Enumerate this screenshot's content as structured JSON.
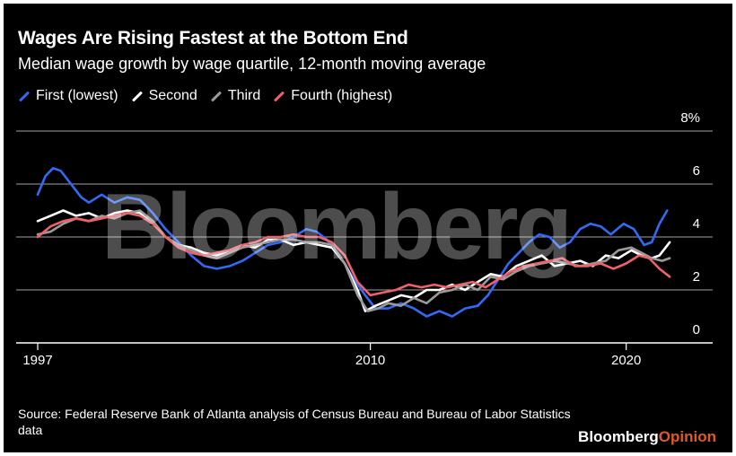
{
  "watermark": "Bloomberg",
  "brand": {
    "part1": "Bloomberg",
    "part2": "Opinion"
  },
  "chart_data": {
    "type": "line",
    "title": "Wages Are Rising Fastest at the Bottom End",
    "subtitle": "Median wage growth by wage quartile, 12-month moving average",
    "source": "Source: Federal Reserve Bank of Atlanta analysis of Census Bureau and Bureau of Labor Statistics data",
    "xlabel": "",
    "ylabel": "",
    "xlim": [
      1997,
      2021.8
    ],
    "ylim": [
      0,
      8
    ],
    "grid": true,
    "legend_position": "top",
    "x_ticks": [
      {
        "value": 1997,
        "label": "1997"
      },
      {
        "value": 2010,
        "label": "2010"
      },
      {
        "value": 2020,
        "label": "2020"
      }
    ],
    "y_ticks": [
      {
        "value": 0,
        "label": "0"
      },
      {
        "value": 2,
        "label": "2"
      },
      {
        "value": 4,
        "label": "4"
      },
      {
        "value": 6,
        "label": "6"
      },
      {
        "value": 8,
        "label": "8%"
      }
    ],
    "series": [
      {
        "name": "First (lowest)",
        "color": "#2f6bf5",
        "points": [
          [
            1997.0,
            5.6
          ],
          [
            1997.3,
            6.3
          ],
          [
            1997.6,
            6.6
          ],
          [
            1997.9,
            6.5
          ],
          [
            1998.3,
            6.0
          ],
          [
            1998.7,
            5.5
          ],
          [
            1999.0,
            5.3
          ],
          [
            1999.5,
            5.6
          ],
          [
            2000.0,
            5.3
          ],
          [
            2000.5,
            5.5
          ],
          [
            2001.0,
            5.4
          ],
          [
            2001.5,
            4.9
          ],
          [
            2002.0,
            4.3
          ],
          [
            2002.5,
            3.8
          ],
          [
            2003.0,
            3.3
          ],
          [
            2003.5,
            2.9
          ],
          [
            2004.0,
            2.8
          ],
          [
            2004.5,
            2.9
          ],
          [
            2005.0,
            3.1
          ],
          [
            2005.5,
            3.4
          ],
          [
            2006.0,
            3.7
          ],
          [
            2006.5,
            3.8
          ],
          [
            2007.0,
            4.0
          ],
          [
            2007.5,
            4.3
          ],
          [
            2007.9,
            4.2
          ],
          [
            2008.3,
            3.9
          ],
          [
            2008.8,
            3.3
          ],
          [
            2009.3,
            2.5
          ],
          [
            2009.8,
            1.8
          ],
          [
            2010.2,
            1.3
          ],
          [
            2010.7,
            1.3
          ],
          [
            2011.2,
            1.5
          ],
          [
            2011.7,
            1.3
          ],
          [
            2012.2,
            1.0
          ],
          [
            2012.7,
            1.2
          ],
          [
            2013.2,
            1.0
          ],
          [
            2013.7,
            1.3
          ],
          [
            2014.2,
            1.4
          ],
          [
            2014.6,
            1.8
          ],
          [
            2015.0,
            2.4
          ],
          [
            2015.4,
            3.0
          ],
          [
            2015.8,
            3.4
          ],
          [
            2016.2,
            3.8
          ],
          [
            2016.6,
            4.1
          ],
          [
            2017.0,
            4.0
          ],
          [
            2017.4,
            3.6
          ],
          [
            2017.8,
            3.8
          ],
          [
            2018.2,
            4.3
          ],
          [
            2018.6,
            4.5
          ],
          [
            2019.0,
            4.4
          ],
          [
            2019.4,
            4.1
          ],
          [
            2019.9,
            4.5
          ],
          [
            2020.3,
            4.3
          ],
          [
            2020.7,
            3.7
          ],
          [
            2021.0,
            3.8
          ],
          [
            2021.3,
            4.5
          ],
          [
            2021.6,
            5.0
          ]
        ]
      },
      {
        "name": "Second",
        "color": "#ffffff",
        "points": [
          [
            1997.0,
            4.6
          ],
          [
            1997.5,
            4.8
          ],
          [
            1998.0,
            5.0
          ],
          [
            1998.5,
            4.8
          ],
          [
            1999.0,
            4.9
          ],
          [
            1999.5,
            4.7
          ],
          [
            2000.0,
            4.9
          ],
          [
            2000.5,
            5.0
          ],
          [
            2001.0,
            4.9
          ],
          [
            2001.5,
            4.6
          ],
          [
            2002.0,
            4.0
          ],
          [
            2002.5,
            3.7
          ],
          [
            2003.0,
            3.6
          ],
          [
            2003.5,
            3.4
          ],
          [
            2004.0,
            3.3
          ],
          [
            2004.5,
            3.5
          ],
          [
            2005.0,
            3.7
          ],
          [
            2005.5,
            3.6
          ],
          [
            2006.0,
            3.9
          ],
          [
            2006.5,
            3.9
          ],
          [
            2007.0,
            3.7
          ],
          [
            2007.5,
            3.8
          ],
          [
            2008.0,
            3.7
          ],
          [
            2008.5,
            3.6
          ],
          [
            2009.0,
            3.0
          ],
          [
            2009.5,
            2.0
          ],
          [
            2009.8,
            1.2
          ],
          [
            2010.2,
            1.4
          ],
          [
            2010.7,
            1.6
          ],
          [
            2011.2,
            1.8
          ],
          [
            2011.7,
            1.7
          ],
          [
            2012.2,
            2.0
          ],
          [
            2012.7,
            2.0
          ],
          [
            2013.2,
            2.2
          ],
          [
            2013.7,
            2.0
          ],
          [
            2014.2,
            2.3
          ],
          [
            2014.7,
            2.6
          ],
          [
            2015.2,
            2.5
          ],
          [
            2015.7,
            2.9
          ],
          [
            2016.2,
            3.1
          ],
          [
            2016.7,
            3.3
          ],
          [
            2017.2,
            2.9
          ],
          [
            2017.7,
            3.0
          ],
          [
            2018.2,
            3.1
          ],
          [
            2018.7,
            2.9
          ],
          [
            2019.2,
            3.3
          ],
          [
            2019.7,
            3.2
          ],
          [
            2020.2,
            3.5
          ],
          [
            2020.6,
            3.3
          ],
          [
            2021.0,
            3.2
          ],
          [
            2021.3,
            3.3
          ],
          [
            2021.7,
            3.8
          ]
        ]
      },
      {
        "name": "Third",
        "color": "#9a9a9a",
        "points": [
          [
            1997.0,
            4.1
          ],
          [
            1997.5,
            4.2
          ],
          [
            1998.0,
            4.5
          ],
          [
            1998.5,
            4.7
          ],
          [
            1999.0,
            4.6
          ],
          [
            1999.5,
            4.8
          ],
          [
            2000.0,
            4.7
          ],
          [
            2000.5,
            4.9
          ],
          [
            2001.0,
            5.0
          ],
          [
            2001.5,
            4.6
          ],
          [
            2002.0,
            4.0
          ],
          [
            2002.5,
            3.7
          ],
          [
            2003.0,
            3.5
          ],
          [
            2003.5,
            3.3
          ],
          [
            2004.0,
            3.2
          ],
          [
            2004.5,
            3.4
          ],
          [
            2005.0,
            3.6
          ],
          [
            2005.5,
            3.7
          ],
          [
            2006.0,
            3.8
          ],
          [
            2006.5,
            3.9
          ],
          [
            2007.0,
            3.9
          ],
          [
            2007.5,
            3.8
          ],
          [
            2008.0,
            3.8
          ],
          [
            2008.5,
            3.7
          ],
          [
            2009.0,
            3.0
          ],
          [
            2009.5,
            1.8
          ],
          [
            2009.9,
            1.2
          ],
          [
            2010.3,
            1.3
          ],
          [
            2010.7,
            1.5
          ],
          [
            2011.2,
            1.4
          ],
          [
            2011.7,
            1.7
          ],
          [
            2012.2,
            1.5
          ],
          [
            2012.7,
            1.9
          ],
          [
            2013.2,
            2.0
          ],
          [
            2013.7,
            2.2
          ],
          [
            2014.2,
            2.0
          ],
          [
            2014.7,
            2.5
          ],
          [
            2015.2,
            2.4
          ],
          [
            2015.7,
            2.7
          ],
          [
            2016.2,
            2.9
          ],
          [
            2016.7,
            3.0
          ],
          [
            2017.2,
            3.1
          ],
          [
            2017.7,
            3.0
          ],
          [
            2018.2,
            2.9
          ],
          [
            2018.7,
            3.0
          ],
          [
            2019.2,
            3.1
          ],
          [
            2019.7,
            3.5
          ],
          [
            2020.2,
            3.6
          ],
          [
            2020.6,
            3.4
          ],
          [
            2021.0,
            3.2
          ],
          [
            2021.4,
            3.1
          ],
          [
            2021.7,
            3.2
          ]
        ]
      },
      {
        "name": "Fourth (highest)",
        "color": "#f0616a",
        "points": [
          [
            1997.0,
            4.0
          ],
          [
            1997.5,
            4.4
          ],
          [
            1998.0,
            4.6
          ],
          [
            1998.5,
            4.7
          ],
          [
            1999.0,
            4.6
          ],
          [
            1999.5,
            4.7
          ],
          [
            2000.0,
            4.8
          ],
          [
            2000.5,
            4.9
          ],
          [
            2001.0,
            4.8
          ],
          [
            2001.5,
            4.5
          ],
          [
            2002.0,
            4.0
          ],
          [
            2002.5,
            3.6
          ],
          [
            2003.0,
            3.4
          ],
          [
            2003.5,
            3.3
          ],
          [
            2004.0,
            3.4
          ],
          [
            2004.5,
            3.5
          ],
          [
            2005.0,
            3.7
          ],
          [
            2005.5,
            3.8
          ],
          [
            2006.0,
            4.0
          ],
          [
            2006.5,
            4.0
          ],
          [
            2007.0,
            4.1
          ],
          [
            2007.5,
            4.0
          ],
          [
            2008.0,
            4.0
          ],
          [
            2008.5,
            3.8
          ],
          [
            2009.0,
            3.3
          ],
          [
            2009.5,
            2.3
          ],
          [
            2010.0,
            1.8
          ],
          [
            2010.5,
            1.9
          ],
          [
            2011.0,
            2.0
          ],
          [
            2011.5,
            2.2
          ],
          [
            2012.0,
            2.1
          ],
          [
            2012.5,
            2.2
          ],
          [
            2013.0,
            2.1
          ],
          [
            2013.5,
            2.2
          ],
          [
            2014.0,
            2.3
          ],
          [
            2014.5,
            2.1
          ],
          [
            2015.0,
            2.4
          ],
          [
            2015.5,
            2.7
          ],
          [
            2016.0,
            2.9
          ],
          [
            2016.5,
            3.0
          ],
          [
            2017.0,
            3.1
          ],
          [
            2017.5,
            3.2
          ],
          [
            2018.0,
            2.9
          ],
          [
            2018.5,
            2.9
          ],
          [
            2019.0,
            3.0
          ],
          [
            2019.5,
            2.8
          ],
          [
            2020.0,
            3.0
          ],
          [
            2020.5,
            3.3
          ],
          [
            2020.9,
            3.2
          ],
          [
            2021.3,
            2.8
          ],
          [
            2021.7,
            2.5
          ]
        ]
      }
    ]
  }
}
